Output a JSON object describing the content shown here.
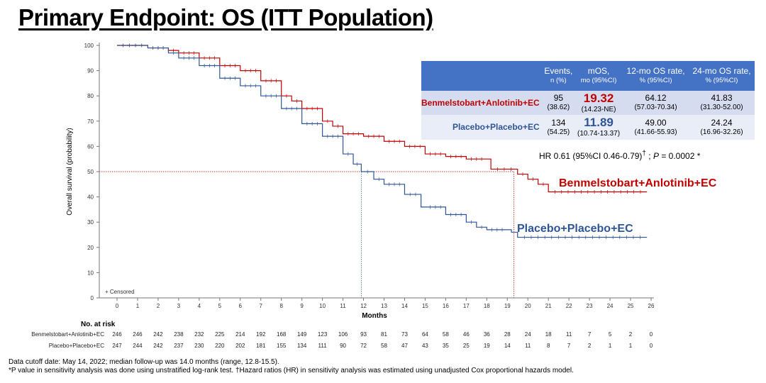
{
  "slide_title": "Primary Endpoint: OS (ITT Population)",
  "colors": {
    "arm1": "#c00000",
    "arm2": "#2f5597",
    "table_header": "#4472c4"
  },
  "chart_data": {
    "type": "line",
    "xlabel": "Months",
    "ylabel": "Overall survival (probability)",
    "xlim": [
      0,
      26
    ],
    "ylim": [
      0,
      100
    ],
    "x_ticks": [
      0,
      1,
      2,
      3,
      4,
      5,
      6,
      7,
      8,
      9,
      10,
      11,
      12,
      13,
      14,
      15,
      16,
      17,
      18,
      19,
      20,
      21,
      22,
      23,
      24,
      25,
      26
    ],
    "y_ticks": [
      0,
      10,
      20,
      30,
      40,
      50,
      60,
      70,
      80,
      90,
      100
    ],
    "censored_legend": "+ Censored",
    "series": [
      {
        "name": "Benmelstobart+Anlotinib+EC",
        "color": "#c00000",
        "points": [
          [
            0,
            100
          ],
          [
            1.5,
            99
          ],
          [
            2.5,
            98
          ],
          [
            3,
            97
          ],
          [
            4,
            95
          ],
          [
            5,
            92
          ],
          [
            6,
            90
          ],
          [
            7,
            86
          ],
          [
            8,
            80
          ],
          [
            8.5,
            78
          ],
          [
            9,
            75
          ],
          [
            10,
            70
          ],
          [
            10.5,
            68
          ],
          [
            11,
            65
          ],
          [
            12,
            64
          ],
          [
            13,
            62
          ],
          [
            14,
            60
          ],
          [
            15,
            57
          ],
          [
            16,
            56
          ],
          [
            17,
            55
          ],
          [
            18,
            55
          ],
          [
            18.2,
            51
          ],
          [
            19.5,
            49
          ],
          [
            20,
            47
          ],
          [
            20.5,
            45
          ],
          [
            21,
            42
          ],
          [
            25.8,
            42
          ]
        ],
        "median": 19.32
      },
      {
        "name": "Placebo+Placebo+EC",
        "color": "#2f5597",
        "points": [
          [
            0,
            100
          ],
          [
            1.5,
            99
          ],
          [
            2.5,
            97
          ],
          [
            3,
            95
          ],
          [
            4,
            92
          ],
          [
            5,
            87
          ],
          [
            6,
            84
          ],
          [
            7,
            80
          ],
          [
            8,
            75
          ],
          [
            9,
            69
          ],
          [
            10,
            64
          ],
          [
            11,
            57
          ],
          [
            11.5,
            53
          ],
          [
            11.89,
            50
          ],
          [
            12.5,
            47
          ],
          [
            13,
            45
          ],
          [
            14,
            41
          ],
          [
            14.8,
            36
          ],
          [
            15,
            36
          ],
          [
            16,
            33
          ],
          [
            17,
            30
          ],
          [
            17.5,
            28
          ],
          [
            18,
            27
          ],
          [
            19,
            27
          ],
          [
            19.2,
            26
          ],
          [
            19.5,
            24
          ],
          [
            25.8,
            24
          ]
        ],
        "median": 11.89
      }
    ],
    "annotations": {
      "label_arm1": "Benmelstobart+Anlotinib+EC",
      "label_arm2": "Placebo+Placebo+EC"
    }
  },
  "risk_table": {
    "title": "No. at risk",
    "rows": [
      {
        "label": "Benmelstobart+Anlotinib+EC",
        "values": [
          246,
          246,
          242,
          238,
          232,
          225,
          214,
          192,
          168,
          149,
          123,
          106,
          93,
          81,
          73,
          64,
          58,
          46,
          36,
          28,
          24,
          18,
          11,
          7,
          5,
          2,
          0
        ]
      },
      {
        "label": "Placebo+Placebo+EC",
        "values": [
          247,
          244,
          242,
          237,
          230,
          220,
          202,
          181,
          155,
          134,
          111,
          90,
          72,
          58,
          47,
          43,
          35,
          25,
          19,
          14,
          11,
          8,
          7,
          2,
          1,
          1,
          0
        ]
      }
    ]
  },
  "summary_table": {
    "headers": [
      {
        "main": "Events,",
        "sub": "n (%)"
      },
      {
        "main": "mOS,",
        "sub": "mo (95%CI)"
      },
      {
        "main": "12-mo OS rate,",
        "sub": "% (95%CI)"
      },
      {
        "main": "24-mo OS rate,",
        "sub": "% (95%CI)"
      }
    ],
    "rows": [
      {
        "arm": "Benmelstobart+Anlotinib+EC",
        "events": "95",
        "events_pct": "(38.62)",
        "mos": "19.32",
        "mos_ci": "(14.23-NE)",
        "rate12": "64.12",
        "rate12_ci": "(57.03-70.34)",
        "rate24": "41.83",
        "rate24_ci": "(31.30-52.00)"
      },
      {
        "arm": "Placebo+Placebo+EC",
        "events": "134",
        "events_pct": "(54.25)",
        "mos": "11.89",
        "mos_ci": "(10.74-13.37)",
        "rate12": "49.00",
        "rate12_ci": "(41.66-55.93)",
        "rate24": "24.24",
        "rate24_ci": "(16.96-32.26)"
      }
    ],
    "hr_text": "HR 0.61 (95%CI 0.46-0.79)",
    "hr_dagger": "†",
    "hr_p_label": "P",
    "hr_p_value": " = 0.0002 *"
  },
  "footnotes": {
    "line1": "Data cutoff date: May 14, 2022; median follow-up was 14.0 months (range, 12.8-15.5).",
    "line2": "*P value in sensitivity analysis was done using unstratified log-rank test.  †Hazard ratios (HR) in sensitivity analysis was estimated using unadjusted Cox proportional hazards model."
  }
}
